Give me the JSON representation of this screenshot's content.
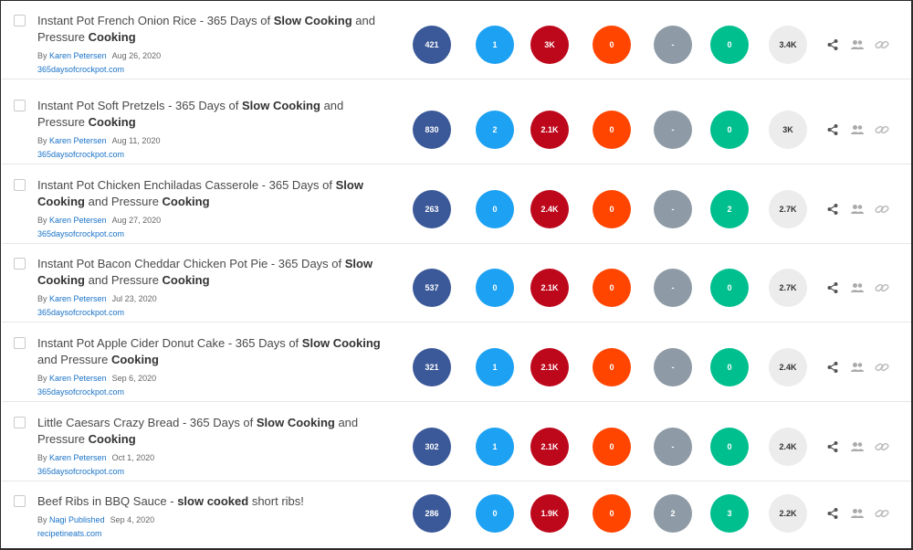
{
  "columns_colors": {
    "facebook": "#3b5998",
    "twitter": "#1da1f2",
    "pinterest": "#bd081c",
    "reddit": "#ff4500",
    "linkedin": "#8e9ba6",
    "evergreen": "#00bf8f",
    "total": "#ececec"
  },
  "rows": [
    {
      "title_segments": [
        {
          "text": "Instant Pot French Onion Rice - 365 Days of ",
          "bold": false
        },
        {
          "text": "Slow Cooking",
          "bold": true
        },
        {
          "text": " and Pressure ",
          "bold": false
        },
        {
          "text": "Cooking",
          "bold": true
        }
      ],
      "title_lines": 2,
      "by": "By",
      "author": "Karen Petersen",
      "date": "Aug 26, 2020",
      "domain": "365daysofcrockpot.com",
      "metrics": [
        "421",
        "1",
        "3K",
        "0",
        "-",
        "0"
      ],
      "total": "3.4K"
    },
    {
      "title_segments": [
        {
          "text": "Instant Pot Soft Pretzels - 365 Days of ",
          "bold": false
        },
        {
          "text": "Slow Cooking",
          "bold": true
        },
        {
          "text": " and Pressure ",
          "bold": false
        },
        {
          "text": "Cooking",
          "bold": true
        }
      ],
      "title_lines": 2,
      "by": "By",
      "author": "Karen Petersen",
      "date": "Aug 11, 2020",
      "domain": "365daysofcrockpot.com",
      "metrics": [
        "830",
        "2",
        "2.1K",
        "0",
        "-",
        "0"
      ],
      "total": "3K"
    },
    {
      "title_segments": [
        {
          "text": "Instant Pot Chicken Enchiladas Casserole - 365 Days of ",
          "bold": false
        },
        {
          "text": "Slow Cooking",
          "bold": true
        },
        {
          "text": " and Pressure ",
          "bold": false
        },
        {
          "text": "Cooking",
          "bold": true
        }
      ],
      "title_lines": 2,
      "by": "By",
      "author": "Karen Petersen",
      "date": "Aug 27, 2020",
      "domain": "365daysofcrockpot.com",
      "metrics": [
        "263",
        "0",
        "2.4K",
        "0",
        "-",
        "2"
      ],
      "total": "2.7K"
    },
    {
      "title_segments": [
        {
          "text": "Instant Pot Bacon Cheddar Chicken Pot Pie - 365 Days of ",
          "bold": false
        },
        {
          "text": "Slow Cooking",
          "bold": true
        },
        {
          "text": " and Pressure ",
          "bold": false
        },
        {
          "text": "Cooking",
          "bold": true
        }
      ],
      "title_lines": 2,
      "by": "By",
      "author": "Karen Petersen",
      "date": "Jul 23, 2020",
      "domain": "365daysofcrockpot.com",
      "metrics": [
        "537",
        "0",
        "2.1K",
        "0",
        "-",
        "0"
      ],
      "total": "2.7K"
    },
    {
      "title_segments": [
        {
          "text": "Instant Pot Apple Cider Donut Cake - 365 Days of ",
          "bold": false
        },
        {
          "text": "Slow Cooking",
          "bold": true
        },
        {
          "text": " and Pressure ",
          "bold": false
        },
        {
          "text": "Cooking",
          "bold": true
        }
      ],
      "title_lines": 2,
      "by": "By",
      "author": "Karen Petersen",
      "date": "Sep 6, 2020",
      "domain": "365daysofcrockpot.com",
      "metrics": [
        "321",
        "1",
        "2.1K",
        "0",
        "-",
        "0"
      ],
      "total": "2.4K"
    },
    {
      "title_segments": [
        {
          "text": "Little Caesars Crazy Bread - 365 Days of ",
          "bold": false
        },
        {
          "text": "Slow Cooking",
          "bold": true
        },
        {
          "text": " and Pressure ",
          "bold": false
        },
        {
          "text": "Cooking",
          "bold": true
        }
      ],
      "title_lines": 2,
      "by": "By",
      "author": "Karen Petersen",
      "date": "Oct 1, 2020",
      "domain": "365daysofcrockpot.com",
      "metrics": [
        "302",
        "1",
        "2.1K",
        "0",
        "-",
        "0"
      ],
      "total": "2.4K"
    },
    {
      "title_segments": [
        {
          "text": "Beef Ribs in BBQ Sauce - ",
          "bold": false
        },
        {
          "text": "slow cooked",
          "bold": true
        },
        {
          "text": " short ribs!",
          "bold": false
        }
      ],
      "title_lines": 1,
      "by": "By",
      "author": "Nagi Published",
      "date": "Sep 4, 2020",
      "domain": "recipetineats.com",
      "metrics": [
        "286",
        "0",
        "1.9K",
        "0",
        "2",
        "3"
      ],
      "total": "2.2K"
    }
  ],
  "icons": {
    "share": "share-icon",
    "users": "users-icon",
    "link": "link-icon"
  }
}
